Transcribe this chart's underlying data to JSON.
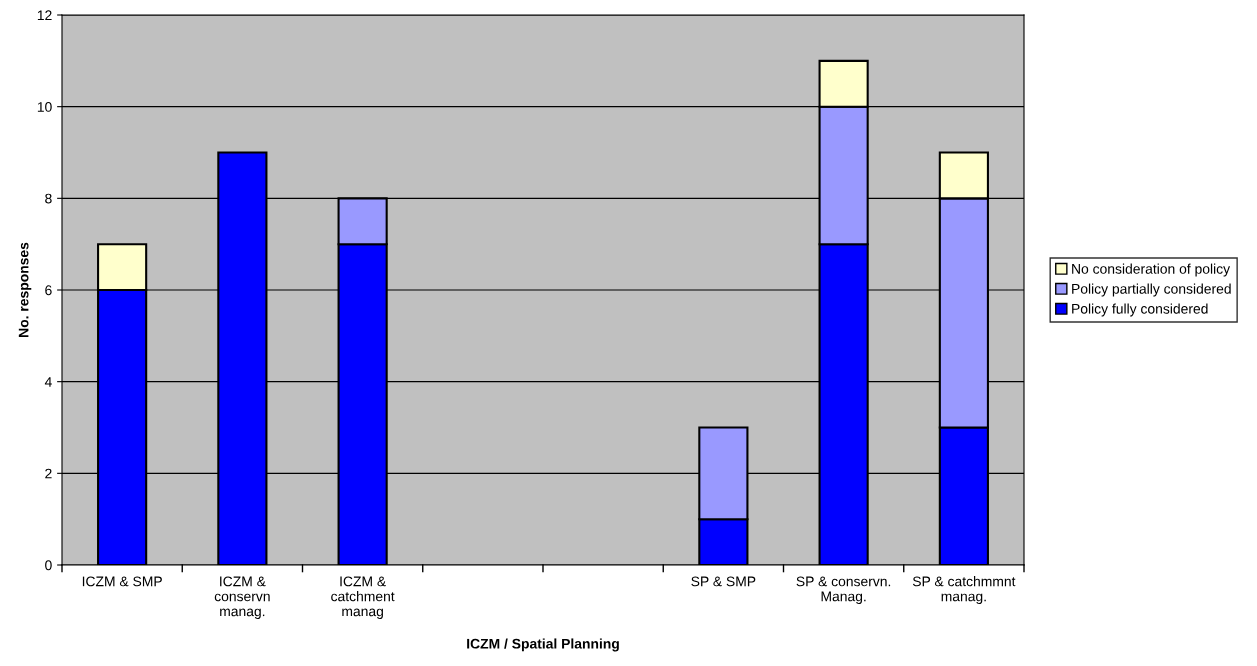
{
  "chart_data": {
    "type": "bar",
    "stacked": true,
    "xlabel": "ICZM / Spatial Planning",
    "ylabel": "No. responses",
    "categories": [
      "ICZM & SMP",
      "ICZM &\nconservn\nmanag.",
      "ICZM &\ncatchment\nmanag",
      null,
      null,
      "SP & SMP",
      "SP & conservn.\nManag.",
      "SP & catchmmnt\nmanag."
    ],
    "series": [
      {
        "name": "Policy fully considered",
        "color": "#0000ff",
        "values": [
          6,
          9,
          7,
          null,
          null,
          1,
          7,
          3
        ]
      },
      {
        "name": "Policy partially considered",
        "color": "#9999ff",
        "values": [
          null,
          null,
          1,
          null,
          null,
          2,
          3,
          5
        ]
      },
      {
        "name": "No consideration of policy",
        "color": "#ffffcc",
        "values": [
          1,
          null,
          null,
          null,
          null,
          null,
          1,
          1
        ]
      }
    ],
    "ylim": [
      0,
      12
    ],
    "yticks": [
      0,
      2,
      4,
      6,
      8,
      10,
      12
    ],
    "grid": "y",
    "legend": "right"
  }
}
